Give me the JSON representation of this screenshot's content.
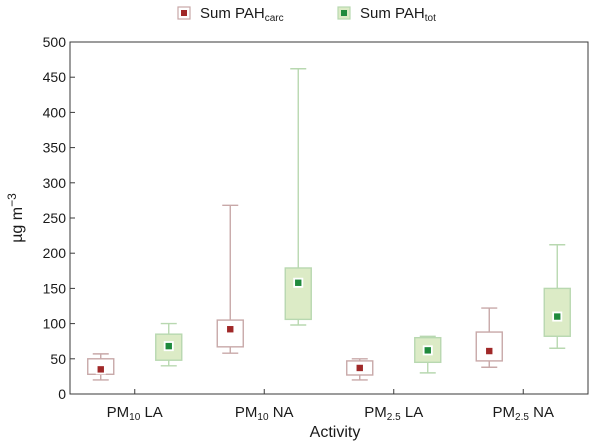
{
  "chart_data": {
    "type": "box",
    "xlabel": "Activity",
    "ylabel": {
      "base": "µg m",
      "sup": "−3"
    },
    "ylim": [
      0,
      500
    ],
    "yticks": [
      0,
      50,
      100,
      150,
      200,
      250,
      300,
      350,
      400,
      450,
      500
    ],
    "categories": [
      {
        "base": "PM",
        "sub": "10",
        "suffix": " LA"
      },
      {
        "base": "PM",
        "sub": "10",
        "suffix": " NA"
      },
      {
        "base": "PM",
        "sub": "2.5",
        "suffix": " LA"
      },
      {
        "base": "PM",
        "sub": "2.5",
        "suffix": " NA"
      }
    ],
    "legend": {
      "position": "top-center"
    },
    "series": [
      {
        "name": {
          "base": "Sum PAH",
          "sub": "carc"
        },
        "box_color": "#c8a8a8",
        "fill": "#ffffff",
        "marker_color": "#a02828",
        "boxes": [
          {
            "min": 20,
            "q1": 28,
            "median": 35,
            "q3": 50,
            "max": 57
          },
          {
            "min": 58,
            "q1": 67,
            "median": 92,
            "q3": 105,
            "max": 268
          },
          {
            "min": 20,
            "q1": 27,
            "median": 37,
            "q3": 47,
            "max": 50
          },
          {
            "min": 38,
            "q1": 47,
            "median": 61,
            "q3": 88,
            "max": 122
          }
        ]
      },
      {
        "name": {
          "base": "Sum PAH",
          "sub": "tot"
        },
        "box_color": "#b8d8b0",
        "fill": "#dcebc6",
        "marker_color": "#1f8a3c",
        "boxes": [
          {
            "min": 40,
            "q1": 48,
            "median": 68,
            "q3": 85,
            "max": 100
          },
          {
            "min": 98,
            "q1": 106,
            "median": 158,
            "q3": 179,
            "max": 462
          },
          {
            "min": 30,
            "q1": 45,
            "median": 62,
            "q3": 80,
            "max": 82
          },
          {
            "min": 65,
            "q1": 82,
            "median": 110,
            "q3": 150,
            "max": 212
          }
        ]
      }
    ]
  }
}
